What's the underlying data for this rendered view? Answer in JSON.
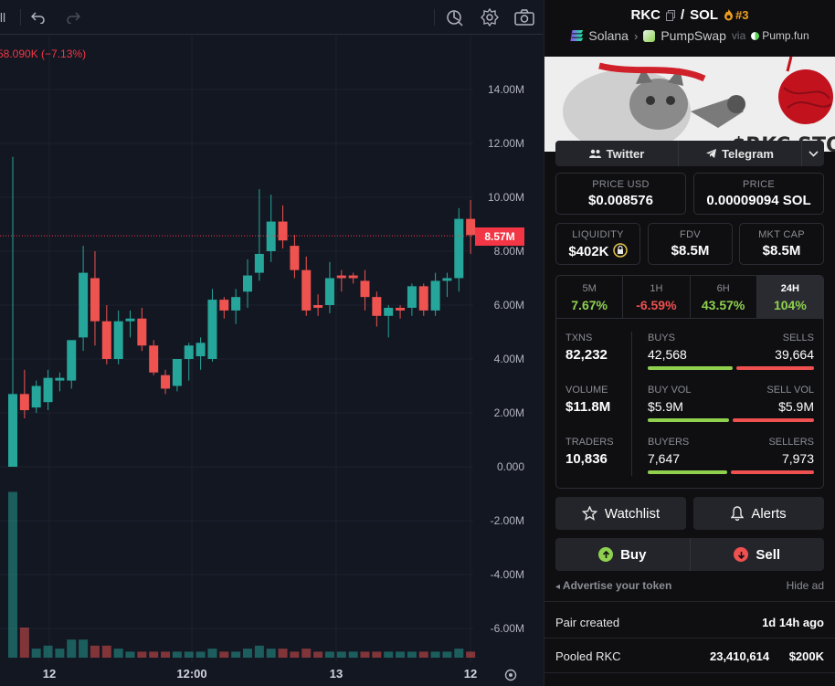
{
  "toolbar": {
    "menu_label": "ll",
    "undo_icon": "undo-icon",
    "redo_icon": "redo-icon",
    "icons": [
      "indicators-icon",
      "gear-icon",
      "camera-icon"
    ]
  },
  "chart": {
    "ohlc_change": "58.090K (−7.13%)",
    "price_tag": "8.57M"
  },
  "chart_data": {
    "type": "candlestick",
    "y_tick_labels": [
      "14.00M",
      "12.00M",
      "10.00M",
      "8.00M",
      "6.00M",
      "4.00M",
      "2.00M",
      "0.000",
      "-2.00M",
      "-4.00M",
      "-6.00M"
    ],
    "y_ticks": [
      14,
      12,
      10,
      8,
      6,
      4,
      2,
      0,
      -2,
      -4,
      -6
    ],
    "x_tick_labels": [
      "12",
      "12:00",
      "13",
      "12"
    ],
    "current_price": 8.57,
    "up_color": "#26a69a",
    "down_color": "#ef5350",
    "candles": [
      {
        "o": 0.0,
        "h": 11.5,
        "l": 0.0,
        "c": 2.7
      },
      {
        "o": 2.7,
        "h": 3.6,
        "l": 1.8,
        "c": 2.1
      },
      {
        "o": 2.2,
        "h": 3.2,
        "l": 2.0,
        "c": 3.0
      },
      {
        "o": 2.4,
        "h": 3.6,
        "l": 2.1,
        "c": 3.3
      },
      {
        "o": 3.2,
        "h": 3.5,
        "l": 2.8,
        "c": 3.3
      },
      {
        "o": 3.2,
        "h": 4.6,
        "l": 2.9,
        "c": 4.7
      },
      {
        "o": 4.8,
        "h": 8.2,
        "l": 4.3,
        "c": 7.2
      },
      {
        "o": 7.0,
        "h": 8.0,
        "l": 4.5,
        "c": 5.4
      },
      {
        "o": 5.4,
        "h": 6.0,
        "l": 3.8,
        "c": 4.0
      },
      {
        "o": 4.0,
        "h": 5.8,
        "l": 3.8,
        "c": 5.4
      },
      {
        "o": 5.4,
        "h": 5.8,
        "l": 4.8,
        "c": 5.5
      },
      {
        "o": 5.5,
        "h": 5.9,
        "l": 4.3,
        "c": 4.5
      },
      {
        "o": 4.5,
        "h": 4.7,
        "l": 3.4,
        "c": 3.5
      },
      {
        "o": 3.4,
        "h": 3.6,
        "l": 2.7,
        "c": 2.9
      },
      {
        "o": 3.0,
        "h": 4.0,
        "l": 2.8,
        "c": 4.0
      },
      {
        "o": 4.0,
        "h": 4.6,
        "l": 3.2,
        "c": 4.5
      },
      {
        "o": 4.1,
        "h": 4.8,
        "l": 3.6,
        "c": 4.6
      },
      {
        "o": 4.0,
        "h": 6.6,
        "l": 3.9,
        "c": 6.2
      },
      {
        "o": 6.2,
        "h": 6.3,
        "l": 5.5,
        "c": 5.8
      },
      {
        "o": 5.8,
        "h": 6.6,
        "l": 5.3,
        "c": 6.3
      },
      {
        "o": 6.5,
        "h": 7.7,
        "l": 5.9,
        "c": 7.1
      },
      {
        "o": 7.2,
        "h": 10.3,
        "l": 6.9,
        "c": 7.9
      },
      {
        "o": 8.0,
        "h": 10.1,
        "l": 7.6,
        "c": 9.1
      },
      {
        "o": 9.1,
        "h": 9.7,
        "l": 8.1,
        "c": 8.4
      },
      {
        "o": 8.2,
        "h": 8.6,
        "l": 7.0,
        "c": 7.3
      },
      {
        "o": 7.3,
        "h": 7.8,
        "l": 5.6,
        "c": 5.8
      },
      {
        "o": 6.0,
        "h": 6.4,
        "l": 5.6,
        "c": 5.9
      },
      {
        "o": 6.0,
        "h": 7.6,
        "l": 5.7,
        "c": 7.0
      },
      {
        "o": 7.1,
        "h": 7.3,
        "l": 6.5,
        "c": 7.0
      },
      {
        "o": 7.1,
        "h": 7.2,
        "l": 6.8,
        "c": 7.0
      },
      {
        "o": 6.9,
        "h": 7.3,
        "l": 5.8,
        "c": 6.3
      },
      {
        "o": 6.3,
        "h": 6.5,
        "l": 5.2,
        "c": 5.6
      },
      {
        "o": 5.6,
        "h": 6.0,
        "l": 4.8,
        "c": 5.9
      },
      {
        "o": 5.9,
        "h": 6.0,
        "l": 5.5,
        "c": 5.8
      },
      {
        "o": 5.9,
        "h": 6.8,
        "l": 5.6,
        "c": 6.7
      },
      {
        "o": 6.7,
        "h": 6.8,
        "l": 5.6,
        "c": 5.8
      },
      {
        "o": 5.8,
        "h": 7.2,
        "l": 5.6,
        "c": 6.9
      },
      {
        "o": 6.9,
        "h": 7.2,
        "l": 6.3,
        "c": 7.0
      },
      {
        "o": 7.0,
        "h": 9.6,
        "l": 6.5,
        "c": 9.2
      },
      {
        "o": 9.2,
        "h": 9.9,
        "l": 7.9,
        "c": 8.6
      }
    ],
    "volumes": [
      {
        "v": 0.55,
        "up": true
      },
      {
        "v": 0.1,
        "up": false
      },
      {
        "v": 0.03,
        "up": true
      },
      {
        "v": 0.04,
        "up": true
      },
      {
        "v": 0.03,
        "up": true
      },
      {
        "v": 0.06,
        "up": true
      },
      {
        "v": 0.06,
        "up": true
      },
      {
        "v": 0.04,
        "up": false
      },
      {
        "v": 0.04,
        "up": false
      },
      {
        "v": 0.03,
        "up": true
      },
      {
        "v": 0.02,
        "up": true
      },
      {
        "v": 0.02,
        "up": false
      },
      {
        "v": 0.02,
        "up": false
      },
      {
        "v": 0.02,
        "up": false
      },
      {
        "v": 0.02,
        "up": true
      },
      {
        "v": 0.02,
        "up": true
      },
      {
        "v": 0.02,
        "up": true
      },
      {
        "v": 0.03,
        "up": true
      },
      {
        "v": 0.02,
        "up": false
      },
      {
        "v": 0.02,
        "up": true
      },
      {
        "v": 0.03,
        "up": true
      },
      {
        "v": 0.04,
        "up": true
      },
      {
        "v": 0.03,
        "up": true
      },
      {
        "v": 0.03,
        "up": false
      },
      {
        "v": 0.02,
        "up": false
      },
      {
        "v": 0.03,
        "up": false
      },
      {
        "v": 0.02,
        "up": false
      },
      {
        "v": 0.02,
        "up": true
      },
      {
        "v": 0.02,
        "up": true
      },
      {
        "v": 0.02,
        "up": true
      },
      {
        "v": 0.02,
        "up": false
      },
      {
        "v": 0.02,
        "up": false
      },
      {
        "v": 0.02,
        "up": true
      },
      {
        "v": 0.02,
        "up": true
      },
      {
        "v": 0.02,
        "up": true
      },
      {
        "v": 0.02,
        "up": false
      },
      {
        "v": 0.02,
        "up": true
      },
      {
        "v": 0.02,
        "up": true
      },
      {
        "v": 0.03,
        "up": true
      },
      {
        "v": 0.02,
        "up": false
      }
    ]
  },
  "pair": {
    "base": "RKC",
    "separator": "/",
    "quote": "SOL",
    "rank": "#3",
    "chain": "Solana",
    "dex": "PumpSwap",
    "via_label": "via",
    "launchpad": "Pump.fun",
    "banner_text": "$RKC STO"
  },
  "socials": {
    "twitter": "Twitter",
    "telegram": "Telegram"
  },
  "prices": {
    "usd_label": "PRICE USD",
    "usd_value": "$0.008576",
    "native_label": "PRICE",
    "native_value": "0.00009094 SOL"
  },
  "metrics": {
    "liquidity_label": "LIQUIDITY",
    "liquidity_value": "$402K",
    "fdv_label": "FDV",
    "fdv_value": "$8.5M",
    "mktcap_label": "MKT CAP",
    "mktcap_value": "$8.5M"
  },
  "timeframes": [
    {
      "label": "5M",
      "value": "7.67%",
      "dir": "pos",
      "active": false
    },
    {
      "label": "1H",
      "value": "-6.59%",
      "dir": "neg",
      "active": false
    },
    {
      "label": "6H",
      "value": "43.57%",
      "dir": "pos",
      "active": false
    },
    {
      "label": "24H",
      "value": "104%",
      "dir": "pos",
      "active": true
    }
  ],
  "txns": {
    "txns_label": "TXNS",
    "txns_value": "82,232",
    "buys_label": "BUYS",
    "buys_value": "42,568",
    "sells_label": "SELLS",
    "sells_value": "39,664",
    "buy_fraction": 0.52,
    "volume_label": "VOLUME",
    "volume_value": "$11.8M",
    "buyvol_label": "BUY VOL",
    "buyvol_value": "$5.9M",
    "sellvol_label": "SELL VOL",
    "sellvol_value": "$5.9M",
    "buyvol_fraction": 0.5,
    "traders_label": "TRADERS",
    "traders_value": "10,836",
    "buyers_label": "BUYERS",
    "buyers_value": "7,647",
    "sellers_label": "SELLERS",
    "sellers_value": "7,973",
    "buyers_fraction": 0.49
  },
  "actions": {
    "watchlist": "Watchlist",
    "alerts": "Alerts",
    "buy": "Buy",
    "sell": "Sell"
  },
  "ad": {
    "advertise": "Advertise your token",
    "hide": "Hide ad"
  },
  "info": {
    "pair_created_label": "Pair created",
    "pair_created_value": "1d 14h ago",
    "pooled_label": "Pooled RKC",
    "pooled_amount": "23,410,614",
    "pooled_usd": "$200K"
  },
  "colors": {
    "up": "#26a69a",
    "down": "#ef5350",
    "positive_text": "#8fd14f",
    "negative_text": "#ef5050",
    "rank": "#f0a020"
  }
}
